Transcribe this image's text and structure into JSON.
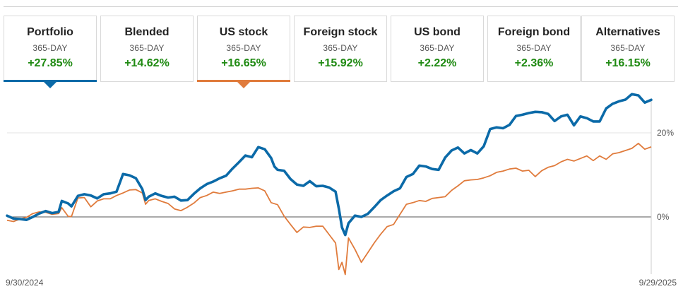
{
  "tabs": [
    {
      "id": "portfolio",
      "label": "Portfolio",
      "period": "365-DAY",
      "return": "+27.85%",
      "selected": true,
      "color": "#0b6aa8"
    },
    {
      "id": "blended",
      "label": "Blended",
      "period": "365-DAY",
      "return": "+14.62%",
      "selected": false
    },
    {
      "id": "us-stock",
      "label": "US stock",
      "period": "365-DAY",
      "return": "+16.65%",
      "selected": true,
      "color": "#e07b3c"
    },
    {
      "id": "foreign-stock",
      "label": "Foreign stock",
      "period": "365-DAY",
      "return": "+15.92%",
      "selected": false
    },
    {
      "id": "us-bond",
      "label": "US bond",
      "period": "365-DAY",
      "return": "+2.22%",
      "selected": false
    },
    {
      "id": "foreign-bond",
      "label": "Foreign bond",
      "period": "365-DAY",
      "return": "+2.36%",
      "selected": false
    },
    {
      "id": "alternatives",
      "label": "Alternatives",
      "period": "365-DAY",
      "return": "+16.15%",
      "selected": false
    }
  ],
  "colors": {
    "positive": "#1f8a12",
    "portfolio": "#0b6aa8",
    "us_stock": "#e07b3c"
  },
  "chart_data": {
    "type": "line",
    "x_start": "9/30/2024",
    "x_end": "9/29/2025",
    "x_labels": [
      "9/30/2024",
      "9/29/2025"
    ],
    "y_ticks": [
      {
        "value": 0,
        "label": "0%"
      },
      {
        "value": 20,
        "label": "20%"
      }
    ],
    "ylim": [
      -14,
      30
    ],
    "grid": "horizontal at 0% and 20%",
    "series": [
      {
        "id": "portfolio",
        "color": "#0b6aa8",
        "points": [
          [
            0,
            0.3
          ],
          [
            0.01,
            -0.4
          ],
          [
            0.02,
            -0.5
          ],
          [
            0.03,
            -0.7
          ],
          [
            0.04,
            0.0
          ],
          [
            0.05,
            0.8
          ],
          [
            0.06,
            1.4
          ],
          [
            0.07,
            0.9
          ],
          [
            0.08,
            1.2
          ],
          [
            0.085,
            3.8
          ],
          [
            0.095,
            3.2
          ],
          [
            0.1,
            2.5
          ],
          [
            0.11,
            5.0
          ],
          [
            0.12,
            5.4
          ],
          [
            0.13,
            5.1
          ],
          [
            0.14,
            4.4
          ],
          [
            0.15,
            5.4
          ],
          [
            0.16,
            5.6
          ],
          [
            0.17,
            6.0
          ],
          [
            0.18,
            10.2
          ],
          [
            0.19,
            9.9
          ],
          [
            0.2,
            9.2
          ],
          [
            0.21,
            6.6
          ],
          [
            0.215,
            4.0
          ],
          [
            0.22,
            4.8
          ],
          [
            0.23,
            5.6
          ],
          [
            0.24,
            5.0
          ],
          [
            0.25,
            4.6
          ],
          [
            0.26,
            4.8
          ],
          [
            0.27,
            3.9
          ],
          [
            0.28,
            4.0
          ],
          [
            0.29,
            5.5
          ],
          [
            0.3,
            6.8
          ],
          [
            0.31,
            7.8
          ],
          [
            0.32,
            8.4
          ],
          [
            0.33,
            9.2
          ],
          [
            0.34,
            9.8
          ],
          [
            0.35,
            11.5
          ],
          [
            0.36,
            13.0
          ],
          [
            0.37,
            14.6
          ],
          [
            0.38,
            14.2
          ],
          [
            0.39,
            16.6
          ],
          [
            0.4,
            16.1
          ],
          [
            0.41,
            14.0
          ],
          [
            0.415,
            12.0
          ],
          [
            0.42,
            11.2
          ],
          [
            0.43,
            11.0
          ],
          [
            0.44,
            9.0
          ],
          [
            0.45,
            7.7
          ],
          [
            0.46,
            7.4
          ],
          [
            0.47,
            8.5
          ],
          [
            0.48,
            7.3
          ],
          [
            0.49,
            7.4
          ],
          [
            0.5,
            7.0
          ],
          [
            0.51,
            6.0
          ],
          [
            0.515,
            2.0
          ],
          [
            0.52,
            -2.5
          ],
          [
            0.525,
            -4.3
          ],
          [
            0.53,
            -1.5
          ],
          [
            0.54,
            0.3
          ],
          [
            0.55,
            0.0
          ],
          [
            0.56,
            0.7
          ],
          [
            0.57,
            2.3
          ],
          [
            0.58,
            4.0
          ],
          [
            0.59,
            5.1
          ],
          [
            0.6,
            6.1
          ],
          [
            0.61,
            6.8
          ],
          [
            0.62,
            9.5
          ],
          [
            0.63,
            10.2
          ],
          [
            0.64,
            12.2
          ],
          [
            0.65,
            12.0
          ],
          [
            0.66,
            11.4
          ],
          [
            0.67,
            11.2
          ],
          [
            0.68,
            14.1
          ],
          [
            0.69,
            15.8
          ],
          [
            0.7,
            16.5
          ],
          [
            0.71,
            15.1
          ],
          [
            0.72,
            15.9
          ],
          [
            0.73,
            15.1
          ],
          [
            0.74,
            16.8
          ],
          [
            0.75,
            20.9
          ],
          [
            0.76,
            21.3
          ],
          [
            0.77,
            21.1
          ],
          [
            0.78,
            21.9
          ],
          [
            0.79,
            24.0
          ],
          [
            0.8,
            24.3
          ],
          [
            0.81,
            24.7
          ],
          [
            0.82,
            25.0
          ],
          [
            0.83,
            24.9
          ],
          [
            0.84,
            24.5
          ],
          [
            0.85,
            22.8
          ],
          [
            0.86,
            23.9
          ],
          [
            0.87,
            24.3
          ],
          [
            0.88,
            21.8
          ],
          [
            0.89,
            23.9
          ],
          [
            0.9,
            23.5
          ],
          [
            0.91,
            22.7
          ],
          [
            0.92,
            22.7
          ],
          [
            0.93,
            25.8
          ],
          [
            0.94,
            26.9
          ],
          [
            0.95,
            27.5
          ],
          [
            0.96,
            27.9
          ],
          [
            0.97,
            29.2
          ],
          [
            0.98,
            28.9
          ],
          [
            0.99,
            27.2
          ],
          [
            1.0,
            27.85
          ]
        ]
      },
      {
        "id": "us-stock",
        "color": "#e07b3c",
        "points": [
          [
            0,
            -0.8
          ],
          [
            0.01,
            -1.1
          ],
          [
            0.02,
            -0.5
          ],
          [
            0.03,
            -0.1
          ],
          [
            0.04,
            0.8
          ],
          [
            0.05,
            1.2
          ],
          [
            0.06,
            1.1
          ],
          [
            0.07,
            0.6
          ],
          [
            0.08,
            0.8
          ],
          [
            0.085,
            2.2
          ],
          [
            0.095,
            0.1
          ],
          [
            0.1,
            0.1
          ],
          [
            0.11,
            4.5
          ],
          [
            0.12,
            4.6
          ],
          [
            0.13,
            2.4
          ],
          [
            0.14,
            3.8
          ],
          [
            0.15,
            4.3
          ],
          [
            0.16,
            4.3
          ],
          [
            0.17,
            5.1
          ],
          [
            0.18,
            5.7
          ],
          [
            0.19,
            6.4
          ],
          [
            0.2,
            6.5
          ],
          [
            0.21,
            5.7
          ],
          [
            0.215,
            3.0
          ],
          [
            0.22,
            3.9
          ],
          [
            0.23,
            4.3
          ],
          [
            0.24,
            3.7
          ],
          [
            0.25,
            3.2
          ],
          [
            0.26,
            1.9
          ],
          [
            0.27,
            1.5
          ],
          [
            0.28,
            2.3
          ],
          [
            0.29,
            3.3
          ],
          [
            0.3,
            4.6
          ],
          [
            0.31,
            5.1
          ],
          [
            0.32,
            5.9
          ],
          [
            0.33,
            5.6
          ],
          [
            0.34,
            5.9
          ],
          [
            0.35,
            6.2
          ],
          [
            0.36,
            6.6
          ],
          [
            0.37,
            6.6
          ],
          [
            0.38,
            6.8
          ],
          [
            0.39,
            6.9
          ],
          [
            0.4,
            6.2
          ],
          [
            0.41,
            3.4
          ],
          [
            0.42,
            2.9
          ],
          [
            0.43,
            0.2
          ],
          [
            0.44,
            -1.8
          ],
          [
            0.45,
            -3.7
          ],
          [
            0.46,
            -2.4
          ],
          [
            0.47,
            -2.5
          ],
          [
            0.48,
            -2.2
          ],
          [
            0.49,
            -2.2
          ],
          [
            0.5,
            -4.2
          ],
          [
            0.51,
            -6.2
          ],
          [
            0.515,
            -12.5
          ],
          [
            0.52,
            -10.8
          ],
          [
            0.525,
            -13.7
          ],
          [
            0.53,
            -5.0
          ],
          [
            0.54,
            -7.7
          ],
          [
            0.55,
            -10.8
          ],
          [
            0.56,
            -8.5
          ],
          [
            0.57,
            -6.2
          ],
          [
            0.58,
            -4.1
          ],
          [
            0.59,
            -2.3
          ],
          [
            0.6,
            -1.8
          ],
          [
            0.61,
            0.6
          ],
          [
            0.62,
            3.0
          ],
          [
            0.63,
            3.4
          ],
          [
            0.64,
            3.9
          ],
          [
            0.65,
            3.7
          ],
          [
            0.66,
            4.4
          ],
          [
            0.67,
            4.6
          ],
          [
            0.68,
            4.8
          ],
          [
            0.69,
            6.3
          ],
          [
            0.7,
            7.4
          ],
          [
            0.71,
            8.6
          ],
          [
            0.72,
            8.8
          ],
          [
            0.73,
            8.9
          ],
          [
            0.74,
            9.3
          ],
          [
            0.75,
            9.8
          ],
          [
            0.76,
            10.6
          ],
          [
            0.77,
            10.9
          ],
          [
            0.78,
            11.4
          ],
          [
            0.79,
            11.6
          ],
          [
            0.8,
            10.9
          ],
          [
            0.81,
            11.1
          ],
          [
            0.82,
            9.6
          ],
          [
            0.83,
            11.0
          ],
          [
            0.84,
            11.8
          ],
          [
            0.85,
            12.2
          ],
          [
            0.86,
            13.1
          ],
          [
            0.87,
            13.7
          ],
          [
            0.88,
            13.3
          ],
          [
            0.89,
            13.9
          ],
          [
            0.9,
            14.5
          ],
          [
            0.91,
            13.4
          ],
          [
            0.92,
            14.5
          ],
          [
            0.93,
            13.7
          ],
          [
            0.94,
            15.0
          ],
          [
            0.95,
            15.3
          ],
          [
            0.96,
            15.8
          ],
          [
            0.97,
            16.3
          ],
          [
            0.98,
            17.5
          ],
          [
            0.99,
            16.1
          ],
          [
            1.0,
            16.65
          ]
        ]
      }
    ]
  }
}
